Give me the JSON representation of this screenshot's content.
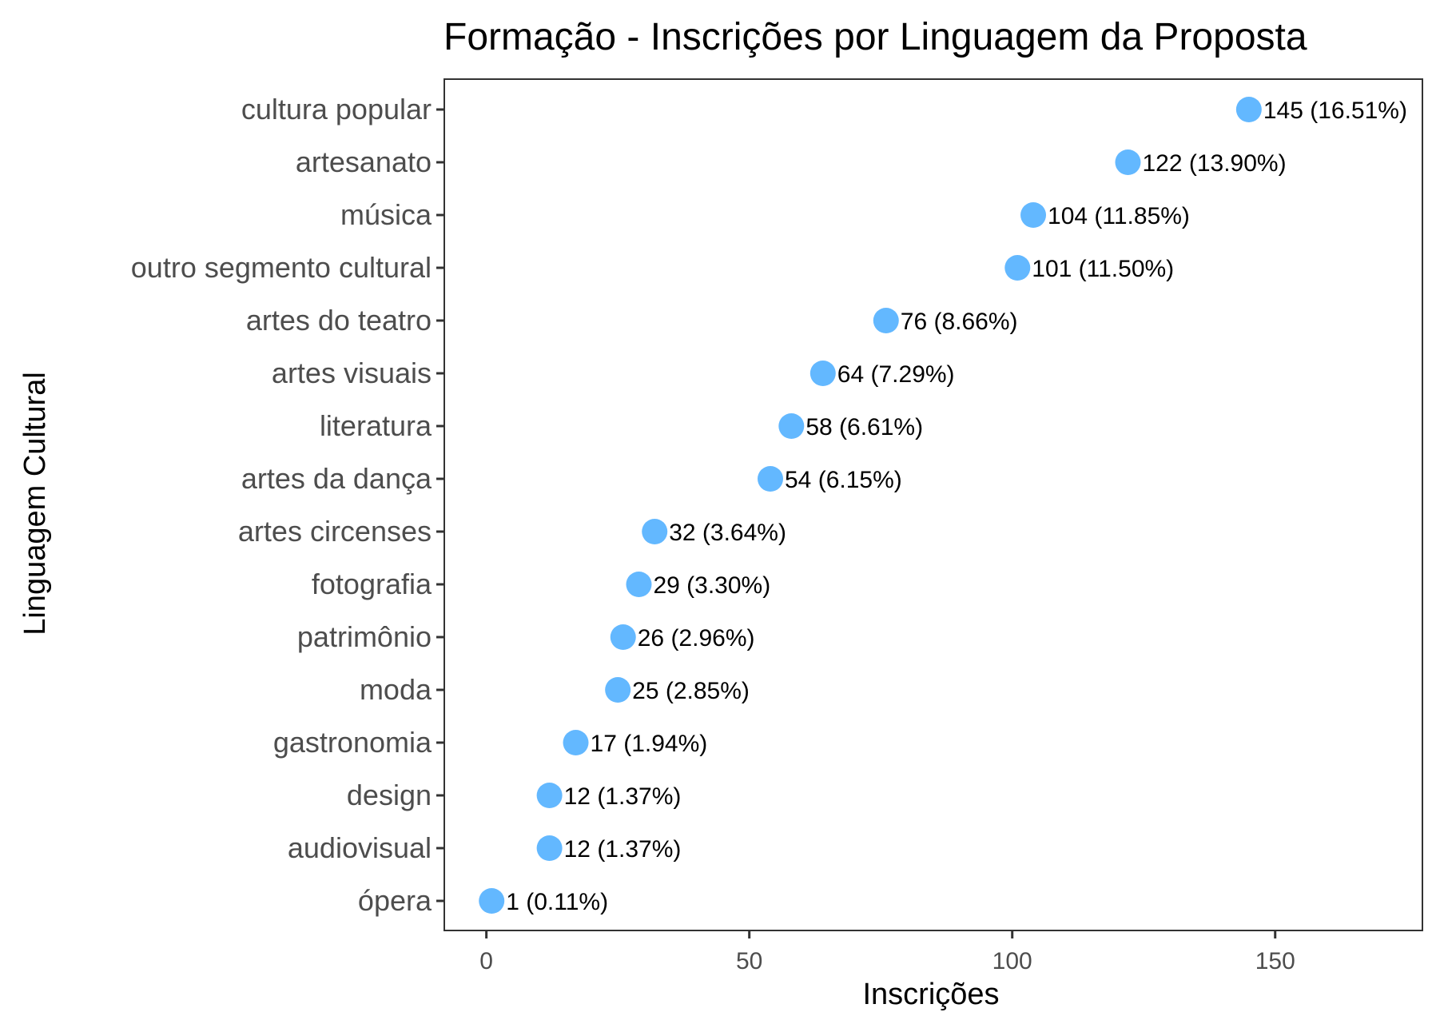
{
  "chart_data": {
    "type": "scatter",
    "title": "Formação - Inscrições por Linguagem da Proposta",
    "xlabel": "Inscrições",
    "ylabel": "Linguagem Cultural",
    "xlim": [
      -8,
      178
    ],
    "x_ticks": [
      0,
      50,
      100,
      150
    ],
    "x_tick_labels": [
      "0",
      "50",
      "100",
      "150"
    ],
    "grid": false,
    "legend": "none",
    "point_color": "#63B8FF",
    "categories": [
      "cultura popular",
      "artesanato",
      "música",
      "outro segmento cultural",
      "artes do teatro",
      "artes visuais",
      "literatura",
      "artes da dança",
      "artes circenses",
      "fotografia",
      "patrimônio",
      "moda",
      "gastronomia",
      "design",
      "audiovisual",
      "ópera"
    ],
    "values": [
      145,
      122,
      104,
      101,
      76,
      64,
      58,
      54,
      32,
      29,
      26,
      25,
      17,
      12,
      12,
      1
    ],
    "data_labels": [
      "145 (16.51%)",
      "122 (13.90%)",
      "104 (11.85%)",
      "101 (11.50%)",
      "76 (8.66%)",
      "64 (7.29%)",
      "58 (6.61%)",
      "54 (6.15%)",
      "32 (3.64%)",
      "29 (3.30%)",
      "26 (2.96%)",
      "25 (2.85%)",
      "17 (1.94%)",
      "12 (1.37%)",
      "12 (1.37%)",
      "1 (0.11%)"
    ]
  }
}
